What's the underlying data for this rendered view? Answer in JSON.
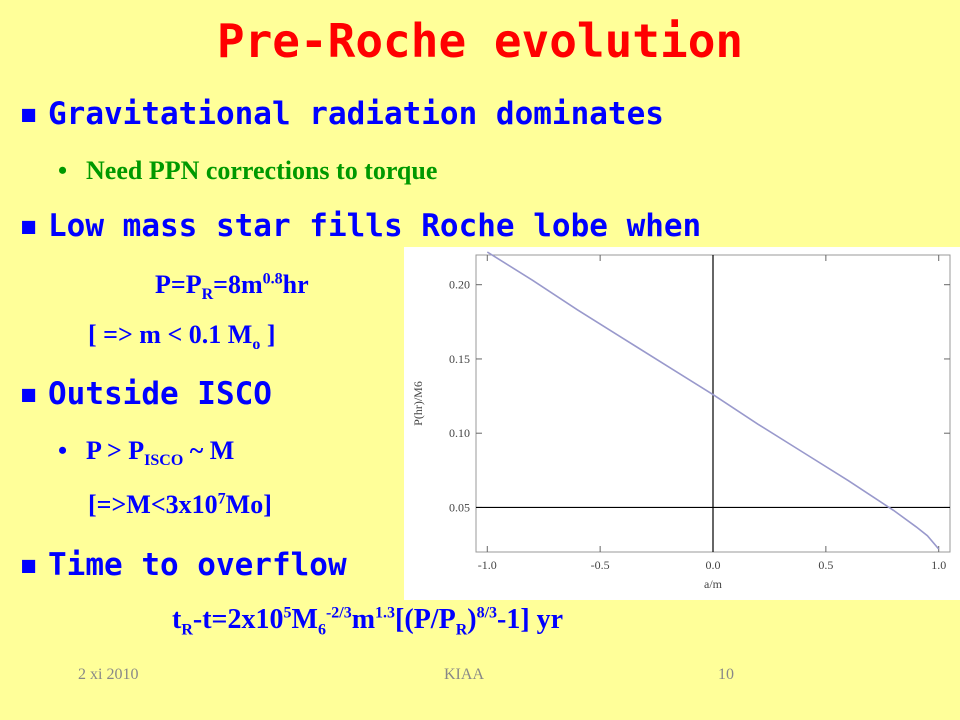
{
  "slide": {
    "title": "Pre-Roche evolution",
    "bullets": {
      "b1": "Gravitational radiation dominates",
      "b1_sub": "Need PPN corrections to torque",
      "b2": "Low mass star fills Roche lobe when",
      "b3": "Outside ISCO",
      "b4": "Time to overflow"
    },
    "equations": {
      "roche_period": {
        "p": "P=P",
        "sub_r": "R",
        "eq": "=8m",
        "exp": "0.8",
        "unit": "hr"
      },
      "mass_limit": {
        "text": "[ => m < 0.1 M",
        "sub": "o",
        "end": " ]"
      },
      "isco": {
        "text": "P > P",
        "sub": "ISCO",
        "end": " ~ M"
      },
      "bh_limit": {
        "text": "[=>M<3x10",
        "exp": "7",
        "end": "Mo]"
      },
      "overflow": {
        "t": "t",
        "sub_r": "R",
        "mid1": "-t=2x10",
        "exp5": "5",
        "m": "M",
        "sub6": "6",
        "exp_m23": "-2/3",
        "m2": "m",
        "exp13": "1.3",
        "p": "[(P/P",
        "sub_r2": "R",
        "close": ")",
        "exp83": "8/3",
        "end": "-1] yr"
      }
    },
    "footer": {
      "date": "2 xi 2010",
      "venue": "KIAA",
      "page": "10"
    },
    "colors": {
      "title": "#ff0000",
      "heading": "#0000ff",
      "sub": "#009900",
      "background": "#ffff99"
    }
  },
  "chart_data": {
    "type": "line",
    "xlabel": "a/m",
    "ylabel": "P(hr)/M6",
    "xlim": [
      -1.05,
      1.05
    ],
    "ylim": [
      0.02,
      0.22
    ],
    "xticks": [
      "-1.0",
      "-0.5",
      "0.0",
      "0.5",
      "1.0"
    ],
    "yticks": [
      "0.05",
      "0.10",
      "0.15",
      "0.20"
    ],
    "ytick_values": [
      0.05,
      0.1,
      0.15,
      0.2
    ],
    "xtick_values": [
      -1.0,
      -0.5,
      0.0,
      0.5,
      1.0
    ],
    "hline": 0.05,
    "vline": 0.0,
    "series": [
      {
        "x": [
          -1.0,
          -0.8,
          -0.6,
          -0.4,
          -0.2,
          0.0,
          0.2,
          0.4,
          0.6,
          0.7,
          0.8,
          0.9,
          0.95,
          1.0
        ],
        "y": [
          0.222,
          0.203,
          0.183,
          0.164,
          0.145,
          0.126,
          0.106,
          0.087,
          0.068,
          0.058,
          0.048,
          0.037,
          0.031,
          0.022
        ]
      }
    ],
    "colors": {
      "line": "#9999cc",
      "axes": "#000000"
    }
  }
}
